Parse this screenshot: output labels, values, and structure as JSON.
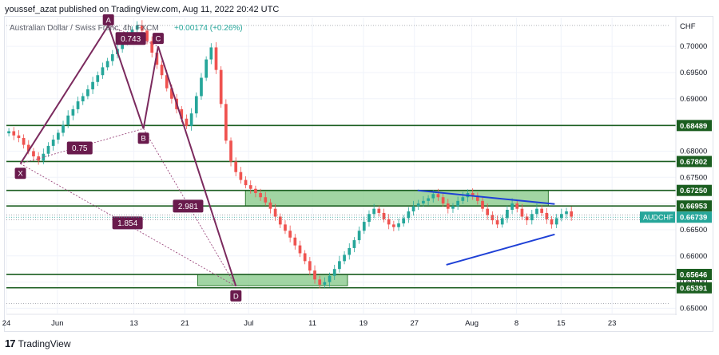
{
  "header": {
    "published_line": "youssef_azat published on TradingView.com, Aug 11, 2022 20:42 UTC"
  },
  "footer": {
    "logo_mark": "17",
    "brand": "TradingView"
  },
  "chart_data": {
    "type": "candlestick",
    "symbol_title": "Australian Dollar / Swiss Franc, 4h, FXCM",
    "change_text": "+0.00174 (+0.26%)",
    "currency_label": "CHF",
    "ylim": [
      0.649,
      0.7055
    ],
    "y_ticks": [
      0.7,
      0.695,
      0.69,
      0.685,
      0.68,
      0.675,
      0.67,
      0.665,
      0.66,
      0.655,
      0.65
    ],
    "y_tick_labels": [
      "0.70000",
      "0.69500",
      "0.69000",
      "0.68500",
      "0.68000",
      "0.67500",
      "0.67000",
      "0.66500",
      "0.66000",
      "0.65500",
      "0.65000"
    ],
    "x_ticks": [
      {
        "label": "24",
        "day": 0
      },
      {
        "label": "Jun",
        "day": 8
      },
      {
        "label": "13",
        "day": 20
      },
      {
        "label": "21",
        "day": 28
      },
      {
        "label": "Jul",
        "day": 38
      },
      {
        "label": "11",
        "day": 48
      },
      {
        "label": "19",
        "day": 56
      },
      {
        "label": "27",
        "day": 64
      },
      {
        "label": "Aug",
        "day": 73
      },
      {
        "label": "8",
        "day": 80
      },
      {
        "label": "15",
        "day": 87
      },
      {
        "label": "23",
        "day": 95
      }
    ],
    "xlim": [
      0,
      104
    ],
    "levels": [
      {
        "value": 0.68489,
        "label": "0.68489"
      },
      {
        "value": 0.67802,
        "label": "0.67802"
      },
      {
        "value": 0.6725,
        "label": "0.67250"
      },
      {
        "value": 0.66953,
        "label": "0.66953"
      },
      {
        "value": 0.65646,
        "label": "0.65646"
      },
      {
        "value": 0.65391,
        "label": "0.65391"
      }
    ],
    "current": {
      "symbol": "AUDCHF",
      "value": 0.66739,
      "label": "0.66739"
    },
    "dotted_levels": [
      0.704,
      0.6678,
      0.6669,
      0.6509
    ],
    "zones": [
      {
        "x0": 37.5,
        "x1": 85,
        "y0": 0.66953,
        "y1": 0.6725
      },
      {
        "x0": 30,
        "x1": 53.5,
        "y0": 0.6543,
        "y1": 0.65646
      }
    ],
    "pattern_points": [
      {
        "label": "X",
        "day": 2.2,
        "value": 0.6776
      },
      {
        "label": "A",
        "day": 16,
        "value": 0.704
      },
      {
        "label": "B",
        "day": 21.5,
        "value": 0.6843
      },
      {
        "label": "C",
        "day": 23.8,
        "value": 0.7
      },
      {
        "label": "D",
        "day": 36,
        "value": 0.6542
      }
    ],
    "ratios": [
      {
        "label": "0.743",
        "day": 19.5,
        "value": 0.7015
      },
      {
        "label": "0.75",
        "day": 11.5,
        "value": 0.6806
      },
      {
        "label": "2.981",
        "day": 28.5,
        "value": 0.6695
      },
      {
        "label": "1.854",
        "day": 19,
        "value": 0.6663
      }
    ],
    "triangle": [
      {
        "from": [
          64.5,
          0.6725
        ],
        "to": [
          86,
          0.6699
        ]
      },
      {
        "from": [
          69,
          0.6583
        ],
        "to": [
          86,
          0.6641
        ]
      }
    ],
    "candles_close": [
      0.6838,
      0.683,
      0.6825,
      0.6812,
      0.68,
      0.679,
      0.6782,
      0.6795,
      0.681,
      0.6822,
      0.6835,
      0.685,
      0.6868,
      0.688,
      0.6895,
      0.6905,
      0.6918,
      0.6932,
      0.6945,
      0.696,
      0.6972,
      0.6985,
      0.6995,
      0.7008,
      0.702,
      0.7032,
      0.704,
      0.703,
      0.701,
      0.6988,
      0.6965,
      0.6945,
      0.692,
      0.69,
      0.688,
      0.6862,
      0.6848,
      0.6872,
      0.6905,
      0.694,
      0.6975,
      0.6998,
      0.6955,
      0.689,
      0.682,
      0.678,
      0.676,
      0.6745,
      0.6735,
      0.6728,
      0.672,
      0.6712,
      0.6702,
      0.669,
      0.6675,
      0.666,
      0.6648,
      0.6635,
      0.662,
      0.6605,
      0.659,
      0.6572,
      0.6555,
      0.6545,
      0.655,
      0.6562,
      0.6575,
      0.659,
      0.6602,
      0.6615,
      0.663,
      0.6648,
      0.6665,
      0.668,
      0.669,
      0.6682,
      0.667,
      0.666,
      0.6655,
      0.6662,
      0.6672,
      0.6685,
      0.6695,
      0.67,
      0.6705,
      0.671,
      0.6718,
      0.6712,
      0.67,
      0.669,
      0.6695,
      0.6705,
      0.6712,
      0.672,
      0.6715,
      0.6705,
      0.669,
      0.6678,
      0.6668,
      0.666,
      0.6672,
      0.6688,
      0.67,
      0.669,
      0.6675,
      0.6668,
      0.668,
      0.669,
      0.6682,
      0.667,
      0.666,
      0.6672,
      0.668,
      0.6685,
      0.6675
    ],
    "candles_end_day": 89
  }
}
